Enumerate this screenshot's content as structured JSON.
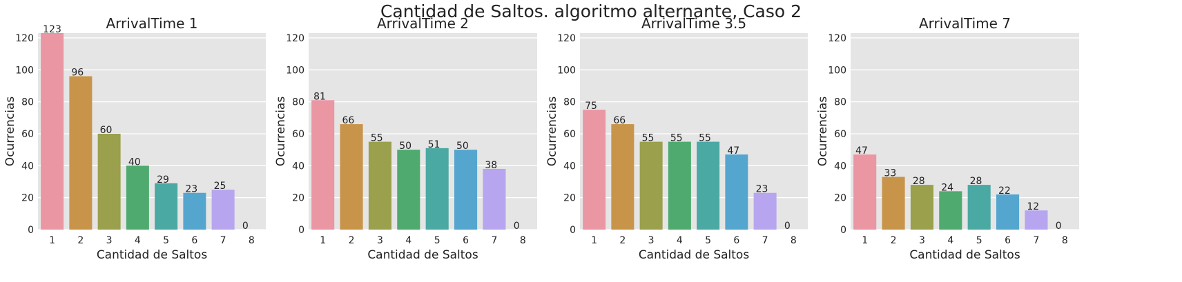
{
  "figure_title": "Cantidad de Saltos. algoritmo alternante, Caso 2",
  "colors": {
    "background": "#e5e5e5",
    "grid": "#ffffff",
    "text": "#222222",
    "bars": [
      "#ea96a3",
      "#c8944a",
      "#9aa04c",
      "#4eaa6f",
      "#4aa9a3",
      "#54a6cf",
      "#b8a5ef",
      "#f18fd6"
    ]
  },
  "chart_data": [
    {
      "type": "bar",
      "title": "ArrivalTime 1",
      "xlabel": "Cantidad de Saltos",
      "ylabel": "Ocurrencias",
      "categories": [
        "1",
        "2",
        "3",
        "4",
        "5",
        "6",
        "7",
        "8"
      ],
      "values": [
        123,
        96,
        60,
        40,
        29,
        23,
        25,
        0
      ],
      "data_labels": [
        "123",
        "96",
        "60",
        "40",
        "29",
        "23",
        "25",
        "0"
      ],
      "ylim": [
        0,
        123
      ],
      "yticks": [
        0,
        20,
        40,
        60,
        80,
        100,
        120
      ],
      "grid": true
    },
    {
      "type": "bar",
      "title": "ArrivalTime 2",
      "xlabel": "Cantidad de Saltos",
      "ylabel": "Ocurrencias",
      "categories": [
        "1",
        "2",
        "3",
        "4",
        "5",
        "6",
        "7",
        "8"
      ],
      "values": [
        81,
        66,
        55,
        50,
        51,
        50,
        38,
        0
      ],
      "data_labels": [
        "81",
        "66",
        "55",
        "50",
        "51",
        "50",
        "38",
        "0"
      ],
      "ylim": [
        0,
        123
      ],
      "yticks": [
        0,
        20,
        40,
        60,
        80,
        100,
        120
      ],
      "grid": true
    },
    {
      "type": "bar",
      "title": "ArrivalTime 3.5",
      "xlabel": "Cantidad de Saltos",
      "ylabel": "Ocurrencias",
      "categories": [
        "1",
        "2",
        "3",
        "4",
        "5",
        "6",
        "7",
        "8"
      ],
      "values": [
        75,
        66,
        55,
        55,
        55,
        47,
        23,
        0
      ],
      "data_labels": [
        "75",
        "66",
        "55",
        "55",
        "55",
        "47",
        "23",
        "0"
      ],
      "ylim": [
        0,
        123
      ],
      "yticks": [
        0,
        20,
        40,
        60,
        80,
        100,
        120
      ],
      "grid": true
    },
    {
      "type": "bar",
      "title": "ArrivalTime 7",
      "xlabel": "Cantidad de Saltos",
      "ylabel": "Ocurrencias",
      "categories": [
        "1",
        "2",
        "3",
        "4",
        "5",
        "6",
        "7",
        "8"
      ],
      "values": [
        47,
        33,
        28,
        24,
        28,
        22,
        12,
        0
      ],
      "data_labels": [
        "47",
        "33",
        "28",
        "24",
        "28",
        "22",
        "12",
        "0"
      ],
      "ylim": [
        0,
        123
      ],
      "yticks": [
        0,
        20,
        40,
        60,
        80,
        100,
        120
      ],
      "grid": true
    }
  ]
}
